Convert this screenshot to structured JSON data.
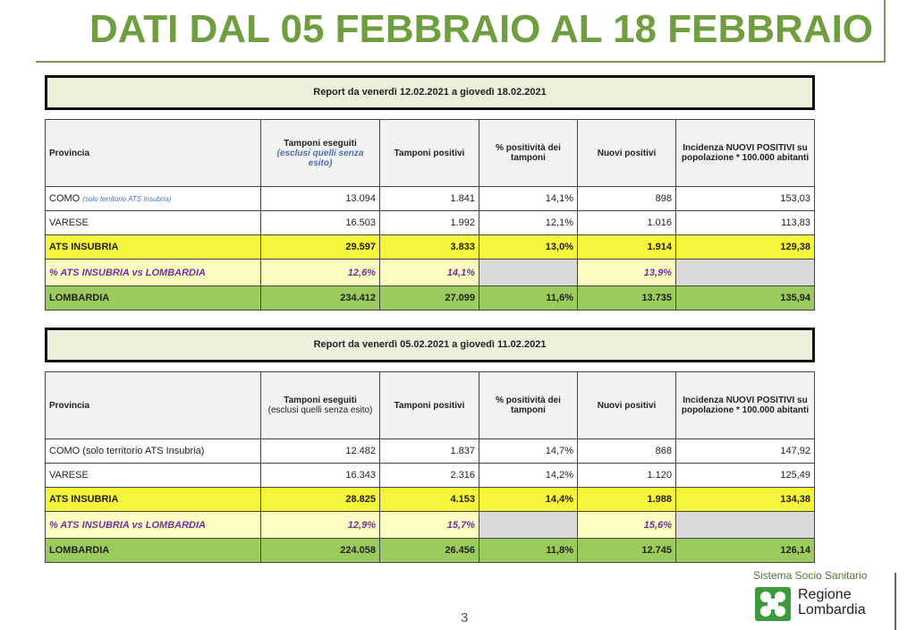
{
  "title": "DATI DAL 05 FEBBRAIO AL 18 FEBBRAIO",
  "headers": {
    "provincia": "Provincia",
    "tamponi_eseguiti": "Tamponi eseguiti",
    "tamponi_eseguiti_note": "(esclusi quelli senza esito)",
    "tamponi_positivi": "Tamponi positivi",
    "positivita": "% positività dei tamponi",
    "nuovi_positivi": "Nuovi positivi",
    "incidenza": "Incidenza NUOVI POSITIVI su popolazione * 100.000 abitanti"
  },
  "tables": [
    {
      "report": "Report da venerdì 12.02.2021 a giovedì 18.02.2021",
      "como_label": "COMO",
      "como_note": "(solo territorio ATS Insubria)",
      "rows": {
        "como": [
          "13.094",
          "1.841",
          "14,1%",
          "898",
          "153,03"
        ],
        "varese": {
          "label": "VARESE",
          "values": [
            "16.503",
            "1.992",
            "12,1%",
            "1.016",
            "113,83"
          ]
        },
        "ats": {
          "label": "ATS INSUBRIA",
          "values": [
            "29.597",
            "3.833",
            "13,0%",
            "1.914",
            "129,38"
          ]
        },
        "pct": {
          "label": "% ATS INSUBRIA vs LOMBARDIA",
          "values": [
            "12,6%",
            "14,1%",
            "",
            "13,9%",
            ""
          ]
        },
        "lombardia": {
          "label": "LOMBARDIA",
          "values": [
            "234.412",
            "27.099",
            "11,6%",
            "13.735",
            "135,94"
          ]
        }
      }
    },
    {
      "report": "Report da venerdì 05.02.2021 a giovedì 11.02.2021",
      "como_label": "COMO (solo territorio ATS Insubria)",
      "rows": {
        "como": [
          "12.482",
          "1.837",
          "14,7%",
          "868",
          "147,92"
        ],
        "varese": {
          "label": "VARESE",
          "values": [
            "16.343",
            "2.316",
            "14,2%",
            "1.120",
            "125,49"
          ]
        },
        "ats": {
          "label": "ATS INSUBRIA",
          "values": [
            "28.825",
            "4.153",
            "14,4%",
            "1.988",
            "134,38"
          ]
        },
        "pct": {
          "label": "% ATS INSUBRIA vs LOMBARDIA",
          "values": [
            "12,9%",
            "15,7%",
            "",
            "15,6%",
            ""
          ]
        },
        "lombardia": {
          "label": "LOMBARDIA",
          "values": [
            "224.058",
            "26.456",
            "11,8%",
            "12.745",
            "126,14"
          ]
        }
      }
    }
  ],
  "page_number": "3",
  "logo": {
    "system": "Sistema Socio Sanitario",
    "line1": "Regione",
    "line2": "Lombardia"
  },
  "colors": {
    "title": "#6e9e3e",
    "ats": "#f5f53c",
    "pct": "#fdfdc2",
    "lombardia": "#9bcb5c"
  }
}
